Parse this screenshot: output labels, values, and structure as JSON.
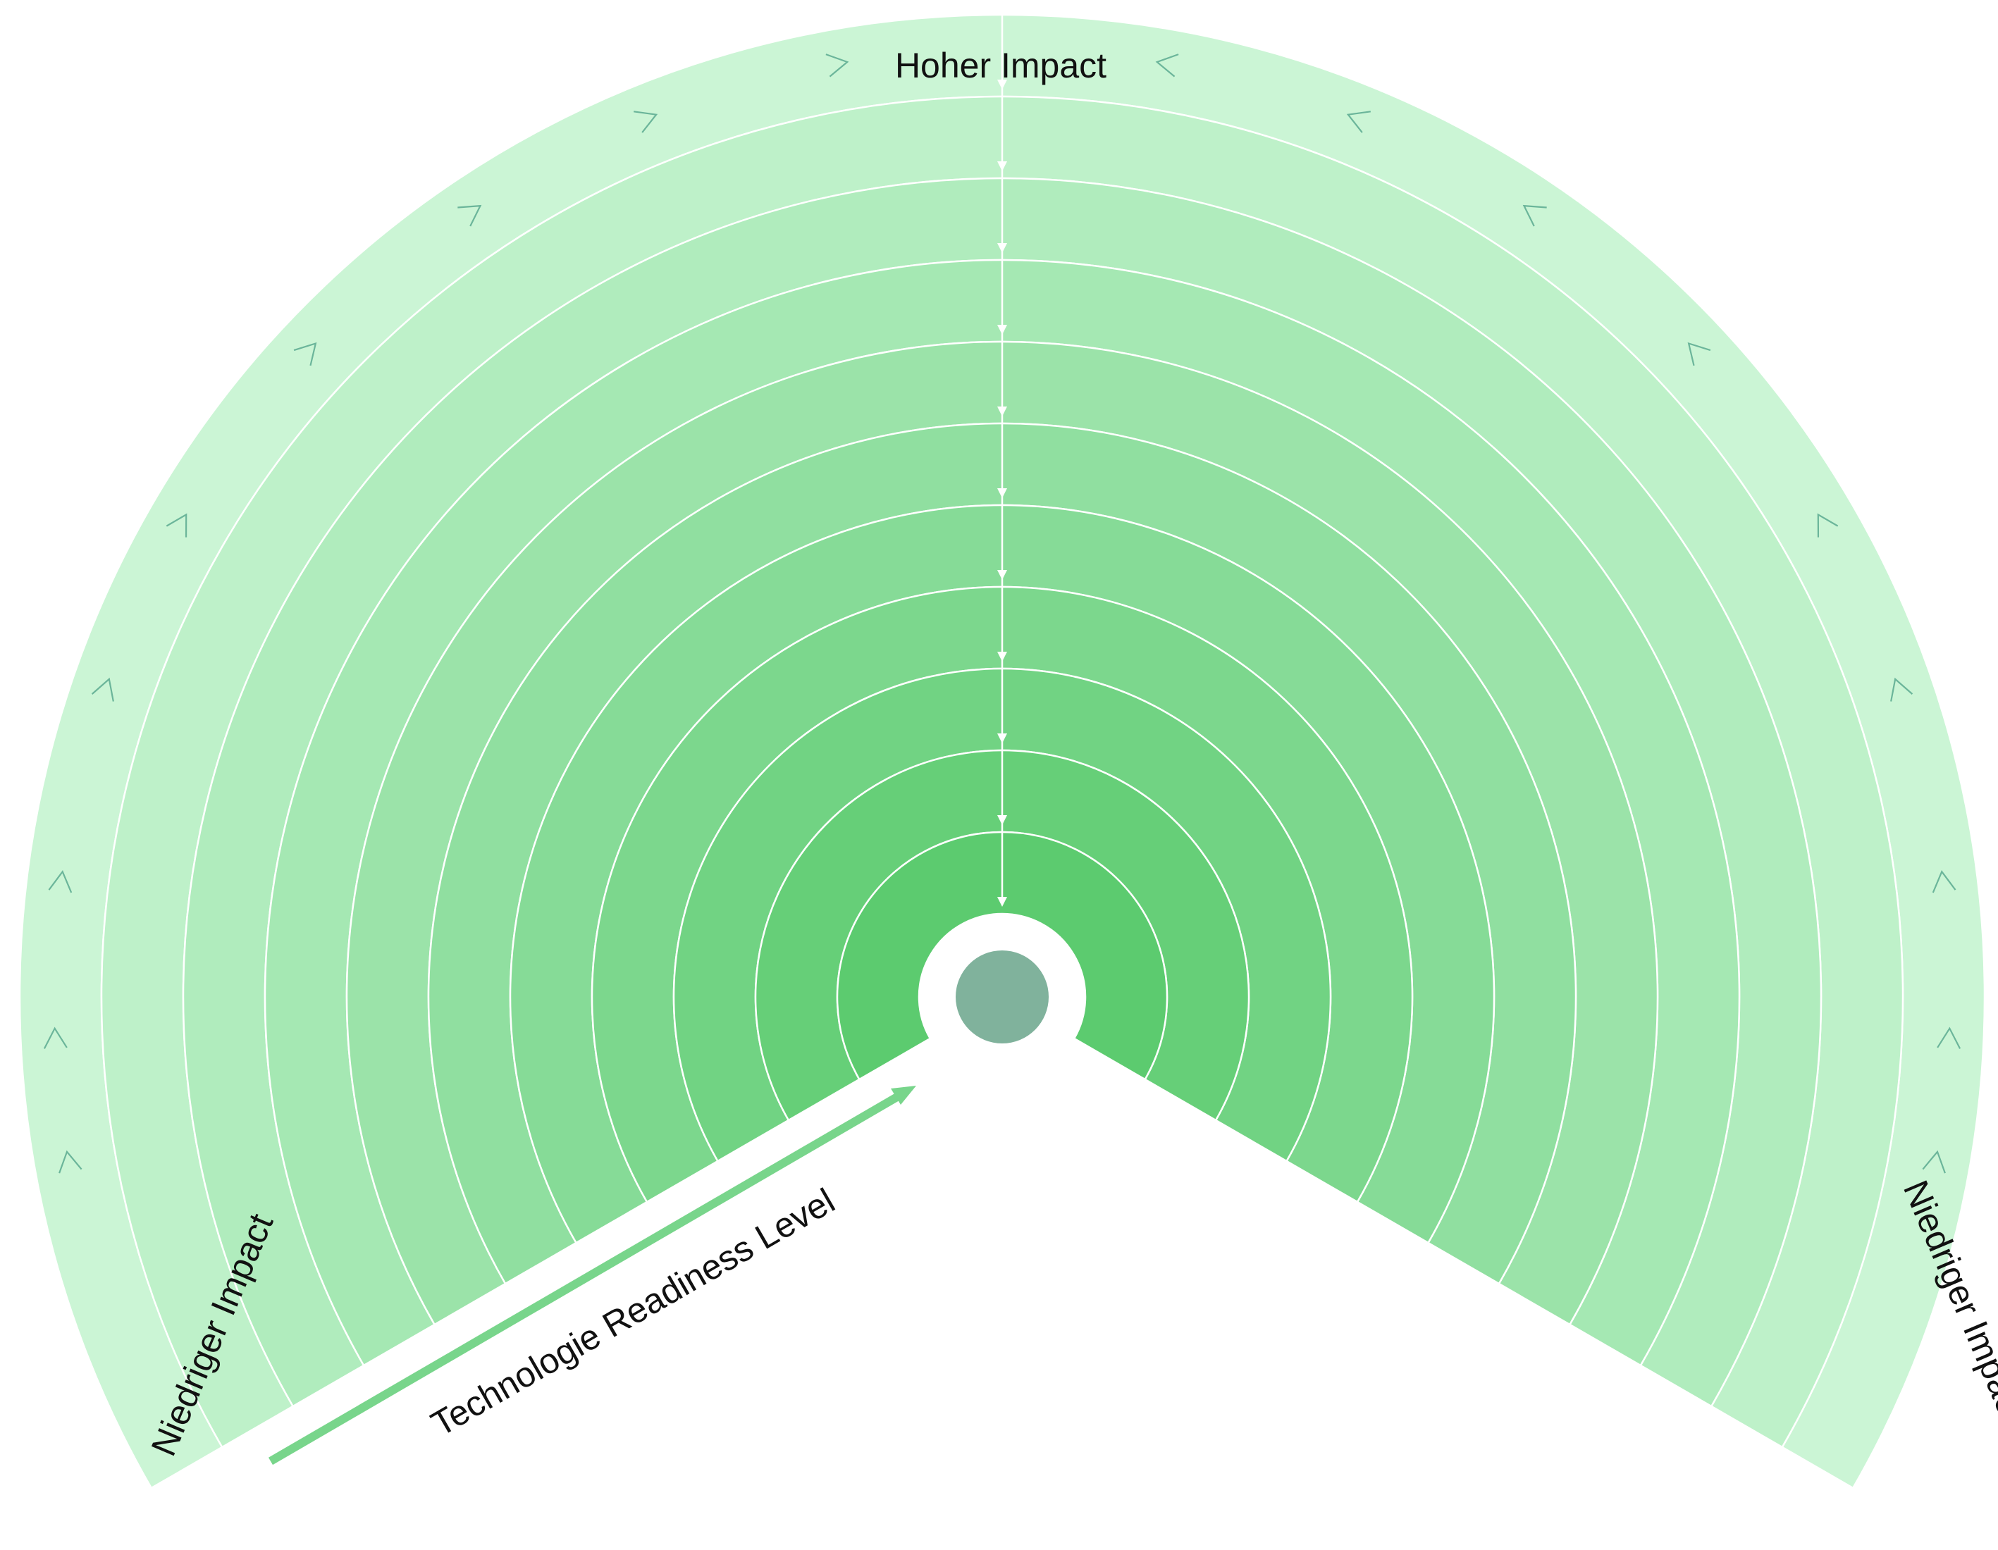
{
  "labels": {
    "top": "Hoher Impact",
    "left": "Niedriger Impact",
    "right": "Niedriger Impact",
    "axis": "Technologie Readiness Level"
  },
  "rings": {
    "count": 11,
    "colors": [
      "#5ccb6f",
      "#66cf78",
      "#71d383",
      "#7cd78d",
      "#86db97",
      "#90dfa0",
      "#9be3a9",
      "#a5e8b3",
      "#b0ecbd",
      "#bef1c9",
      "#cbf5d5"
    ]
  },
  "colors": {
    "center_dot": "#80b29c",
    "axis_arrow": "#78d58b",
    "chevrons": "#6bb59a",
    "separators": "#ffffff"
  },
  "chevrons": {
    "left_count": 9,
    "right_count": 9
  }
}
